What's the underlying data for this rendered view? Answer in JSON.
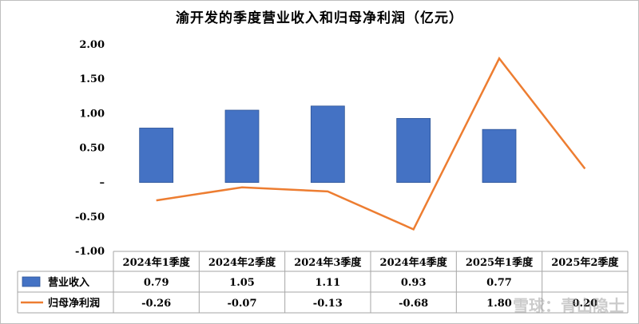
{
  "chart_data": {
    "type": "bar",
    "title": "渝开发的季度营业收入和归母净利润（亿元）",
    "categories": [
      "2024年1季度",
      "2024年2季度",
      "2024年3季度",
      "2024年4季度",
      "2025年1季度",
      "2025年2季度"
    ],
    "series": [
      {
        "name": "营业收入",
        "type": "bar",
        "color": "#4472c4",
        "values": [
          0.79,
          1.05,
          1.11,
          0.93,
          0.77,
          null
        ],
        "labels": [
          "0.79",
          "1.05",
          "1.11",
          "0.93",
          "0.77",
          ""
        ]
      },
      {
        "name": "归母净利润",
        "type": "line",
        "color": "#ed7d31",
        "values": [
          -0.26,
          -0.07,
          -0.13,
          -0.68,
          1.8,
          0.2
        ],
        "labels": [
          "-0.26",
          "-0.07",
          "-0.13",
          "-0.68",
          "1.80",
          "0.20"
        ]
      }
    ],
    "yticks": [
      "2.00",
      "1.50",
      "1.00",
      "0.50",
      "–",
      "-0.50",
      "-1.00"
    ],
    "ylim": [
      -1.0,
      2.0
    ],
    "grid": false,
    "legend": "data-table"
  },
  "watermark": "雪球：青山隐士"
}
